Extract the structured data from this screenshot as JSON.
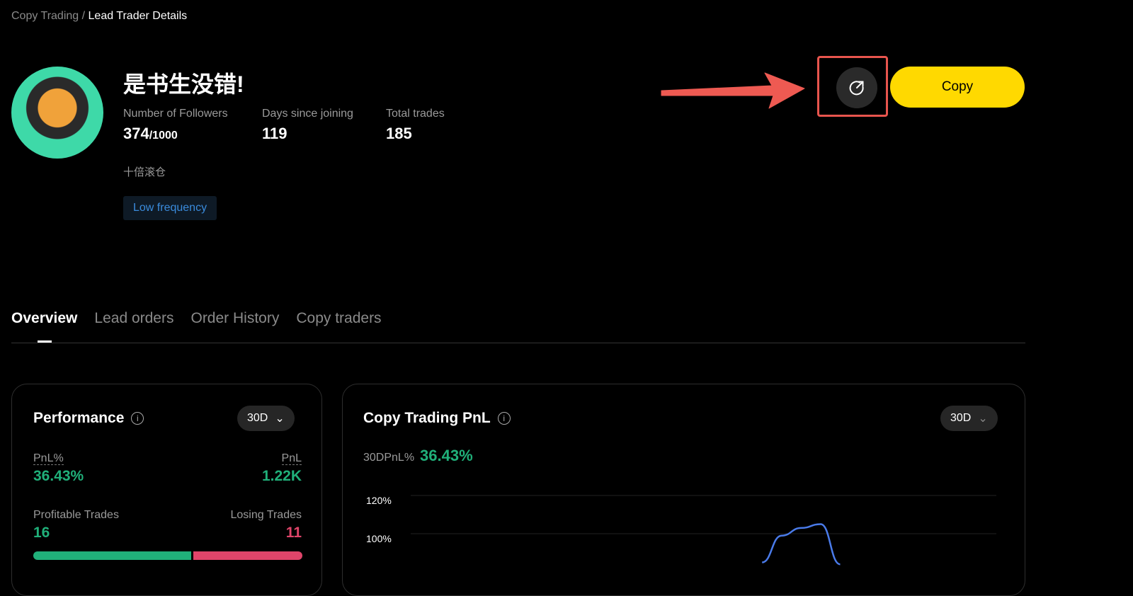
{
  "breadcrumb": {
    "parent": "Copy Trading",
    "separator": "/",
    "current": "Lead Trader Details"
  },
  "trader": {
    "name": "是书生没错!",
    "bio": "十倍滚仓",
    "tag": "Low frequency",
    "stats": [
      {
        "label": "Number of Followers",
        "value": "374",
        "suffix": "/1000"
      },
      {
        "label": "Days since joining",
        "value": "119"
      },
      {
        "label": "Total trades",
        "value": "185"
      }
    ]
  },
  "actions": {
    "share_icon": "share-icon",
    "copy_label": "Copy"
  },
  "tabs": [
    "Overview",
    "Lead orders",
    "Order History",
    "Copy traders"
  ],
  "performance": {
    "title": "Performance",
    "period": "30D",
    "pnl_pct_label": "PnL%",
    "pnl_pct": "36.43%",
    "pnl_label": "PnL",
    "pnl": "1.22K",
    "profitable_label": "Profitable Trades",
    "profitable": "16",
    "losing_label": "Losing Trades",
    "losing": "11",
    "colors": {
      "profit": "#20b07a",
      "loss": "#e0456a"
    }
  },
  "pnl_chart": {
    "title": "Copy Trading PnL",
    "period": "30D",
    "summary_label": "30DPnL%",
    "summary_value": "36.43%"
  },
  "chart_data": {
    "type": "line",
    "y_ticks": [
      "120%",
      "100%"
    ],
    "ylim_visible": [
      80,
      120
    ],
    "x_range_days": [
      0,
      30
    ],
    "series": [
      {
        "x": [
          18,
          19,
          20,
          21,
          22
        ],
        "values": [
          85,
          99,
          103,
          105,
          84
        ],
        "color": "#4a7bea"
      }
    ]
  }
}
